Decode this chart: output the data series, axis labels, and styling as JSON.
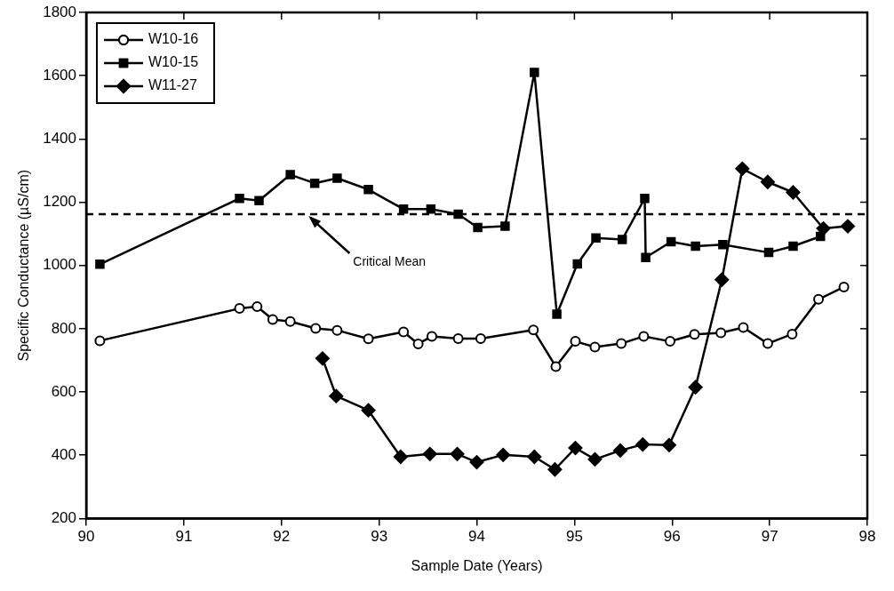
{
  "chart_data": {
    "type": "line",
    "xlabel": "Sample Date (Years)",
    "ylabel": "Specific Conductance (µS/cm)",
    "xlim": [
      90,
      98
    ],
    "xticks": [
      90,
      91,
      92,
      93,
      94,
      95,
      96,
      97,
      98
    ],
    "ylim": [
      200,
      1800
    ],
    "yticks": [
      200,
      400,
      600,
      800,
      1000,
      1200,
      1400,
      1600,
      1800
    ],
    "grid": false,
    "legend": "top left",
    "line_style": "solid",
    "ref_lines": [
      {
        "axis": "y",
        "value": 1162,
        "line_style": "dashed",
        "color": "#000000"
      }
    ],
    "annotations": [
      {
        "text": "Critical Mean",
        "x": 92.26,
        "y": 1162
      }
    ],
    "series": [
      {
        "name": "W10-16",
        "color": "#000000",
        "marker": "circle",
        "x": [
          90.14,
          91.57,
          91.75,
          91.91,
          92.09,
          92.35,
          92.57,
          92.89,
          93.25,
          93.4,
          93.54,
          93.81,
          94.04,
          94.58,
          94.81,
          95.01,
          95.21,
          95.48,
          95.71,
          95.98,
          96.23,
          96.5,
          96.73,
          96.98,
          97.23,
          97.5,
          97.76
        ],
        "values": [
          762,
          864,
          870,
          829,
          823,
          801,
          795,
          768,
          790,
          752,
          776,
          769,
          769,
          796,
          680,
          760,
          742,
          753,
          776,
          760,
          782,
          787,
          804,
          753,
          783,
          893,
          932
        ]
      },
      {
        "name": "W10-15",
        "color": "#000000",
        "marker": "square",
        "x": [
          90.14,
          91.57,
          91.77,
          92.09,
          92.34,
          92.57,
          92.89,
          93.25,
          93.53,
          93.81,
          94.01,
          94.29,
          94.59,
          94.82,
          95.03,
          95.22,
          95.49,
          95.72,
          95.73,
          95.99,
          96.24,
          96.52,
          96.99,
          97.24,
          97.52
        ],
        "values": [
          1004,
          1212,
          1205,
          1287,
          1260,
          1276,
          1240,
          1178,
          1178,
          1162,
          1120,
          1124,
          1610,
          846,
          1005,
          1087,
          1082,
          1212,
          1025,
          1075,
          1061,
          1066,
          1041,
          1061,
          1092
        ]
      },
      {
        "name": "W11-27",
        "color": "#000000",
        "marker": "diamond",
        "x": [
          92.42,
          92.56,
          92.89,
          93.22,
          93.52,
          93.8,
          94.0,
          94.27,
          94.59,
          94.8,
          95.01,
          95.21,
          95.47,
          95.7,
          95.97,
          96.24,
          96.51,
          96.72,
          96.98,
          97.24,
          97.55,
          97.8
        ],
        "values": [
          706,
          587,
          542,
          395,
          404,
          404,
          378,
          401,
          395,
          355,
          423,
          387,
          415,
          434,
          432,
          615,
          955,
          1306,
          1264,
          1231,
          1117,
          1124
        ]
      }
    ]
  }
}
